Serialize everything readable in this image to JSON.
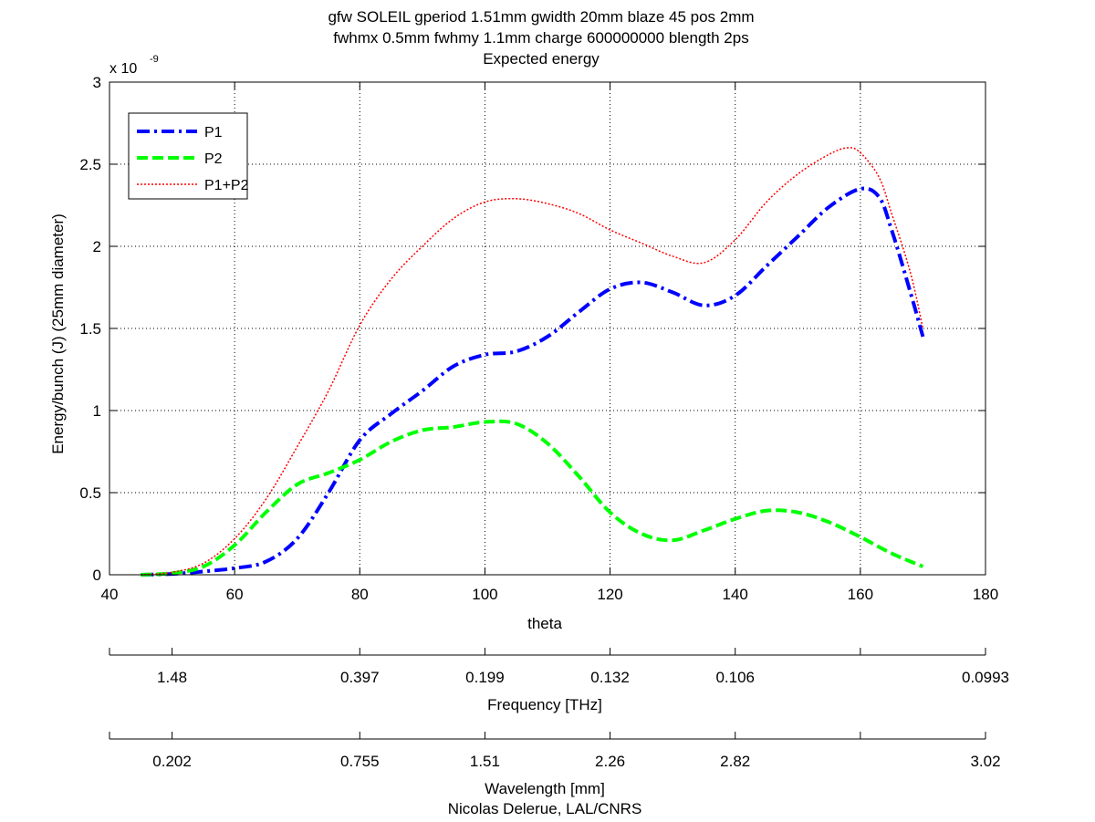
{
  "title_lines": [
    "gfw SOLEIL gperiod 1.51mm gwidth 20mm blaze 45 pos 2mm",
    "fwhmx 0.5mm fwhmy 1.1mm charge 600000000 blength 2ps",
    "Expected energy"
  ],
  "footer": "Nicolas Delerue, LAL/CNRS",
  "chart_data": {
    "type": "line",
    "xlabel": "theta",
    "ylabel": "Energy/bunch (J) (25mm diameter)",
    "y_multiplier_base": "x 10",
    "y_multiplier_exp": "-9",
    "xlim": [
      40,
      180
    ],
    "ylim": [
      0,
      3
    ],
    "x_ticks": [
      40,
      60,
      80,
      100,
      120,
      140,
      160,
      180
    ],
    "x_tick_labels": [
      "40",
      "60",
      "80",
      "100",
      "120",
      "140",
      "160",
      "180"
    ],
    "y_ticks": [
      0,
      0.5,
      1,
      1.5,
      2,
      2.5,
      3
    ],
    "y_tick_labels": [
      "0",
      "0.5",
      "1",
      "1.5",
      "2",
      "2.5",
      "3"
    ],
    "grid": true,
    "legend_position": "top-left",
    "series": [
      {
        "name": "P1",
        "color": "#0000ff",
        "style": "dashdot",
        "x": [
          45,
          50,
          55,
          60,
          65,
          70,
          75,
          80,
          85,
          90,
          95,
          100,
          105,
          110,
          115,
          120,
          125,
          130,
          135,
          140,
          145,
          150,
          155,
          160,
          163,
          165,
          168,
          170
        ],
        "y": [
          0.0,
          0.005,
          0.02,
          0.04,
          0.08,
          0.22,
          0.5,
          0.82,
          0.98,
          1.12,
          1.27,
          1.34,
          1.36,
          1.45,
          1.6,
          1.74,
          1.78,
          1.72,
          1.64,
          1.7,
          1.88,
          2.06,
          2.24,
          2.35,
          2.3,
          2.1,
          1.72,
          1.45
        ]
      },
      {
        "name": "P2",
        "color": "#00ff00",
        "style": "dashed",
        "x": [
          45,
          50,
          55,
          60,
          65,
          70,
          75,
          80,
          85,
          90,
          95,
          100,
          105,
          110,
          115,
          120,
          125,
          130,
          135,
          140,
          145,
          150,
          155,
          160,
          165,
          170
        ],
        "y": [
          0.0,
          0.01,
          0.05,
          0.18,
          0.38,
          0.55,
          0.62,
          0.7,
          0.81,
          0.88,
          0.9,
          0.93,
          0.92,
          0.8,
          0.6,
          0.38,
          0.25,
          0.21,
          0.27,
          0.34,
          0.39,
          0.38,
          0.32,
          0.23,
          0.13,
          0.05
        ]
      },
      {
        "name": "P1+P2",
        "color": "#ff0000",
        "style": "dotted",
        "x": [
          45,
          50,
          55,
          60,
          65,
          70,
          75,
          80,
          85,
          90,
          95,
          100,
          105,
          110,
          115,
          120,
          125,
          130,
          135,
          140,
          145,
          150,
          155,
          158,
          160,
          163,
          165,
          168,
          170
        ],
        "y": [
          0.0,
          0.015,
          0.07,
          0.22,
          0.46,
          0.78,
          1.12,
          1.52,
          1.8,
          2.0,
          2.17,
          2.27,
          2.29,
          2.26,
          2.2,
          2.1,
          2.02,
          1.94,
          1.9,
          2.04,
          2.27,
          2.44,
          2.56,
          2.6,
          2.57,
          2.42,
          2.2,
          1.84,
          1.5
        ]
      }
    ],
    "secondary_axes": [
      {
        "label": "Frequency [THz]",
        "tick_positions": [
          40,
          50,
          80,
          100,
          120,
          140,
          160,
          180
        ],
        "tick_labels": [
          "",
          "1.48",
          "0.397",
          "0.199",
          "0.132",
          "0.106",
          "",
          "0.0993"
        ],
        "labeled_ticks": [
          50,
          80,
          100,
          120,
          140,
          160,
          180
        ]
      },
      {
        "label": "Wavelength [mm]",
        "tick_positions": [
          40,
          50,
          80,
          100,
          120,
          140,
          160,
          180
        ],
        "tick_labels": [
          "",
          "0.202",
          "0.755",
          "1.51",
          "2.26",
          "2.82",
          "",
          "3.02"
        ],
        "labeled_ticks": [
          50,
          80,
          100,
          120,
          140,
          160,
          180
        ]
      }
    ]
  }
}
